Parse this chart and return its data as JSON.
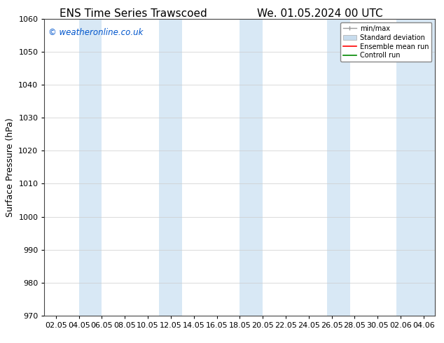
{
  "title_left": "ENS Time Series Trawscoed",
  "title_right": "We. 01.05.2024 00 UTC",
  "ylabel": "Surface Pressure (hPa)",
  "ylim": [
    970,
    1060
  ],
  "yticks": [
    970,
    980,
    990,
    1000,
    1010,
    1020,
    1030,
    1040,
    1050,
    1060
  ],
  "x_tick_labels": [
    "02.05",
    "04.05",
    "06.05",
    "08.05",
    "10.05",
    "12.05",
    "14.05",
    "16.05",
    "18.05",
    "20.05",
    "22.05",
    "24.05",
    "26.05",
    "28.05",
    "30.05",
    "02.06",
    "04.06"
  ],
  "watermark": "© weatheronline.co.uk",
  "watermark_color": "#0055cc",
  "background_color": "#ffffff",
  "plot_bg_color": "#ffffff",
  "band_color": "#d8e8f5",
  "legend_entries": [
    "min/max",
    "Standard deviation",
    "Ensemble mean run",
    "Controll run"
  ],
  "title_fontsize": 11,
  "label_fontsize": 9,
  "tick_fontsize": 8
}
